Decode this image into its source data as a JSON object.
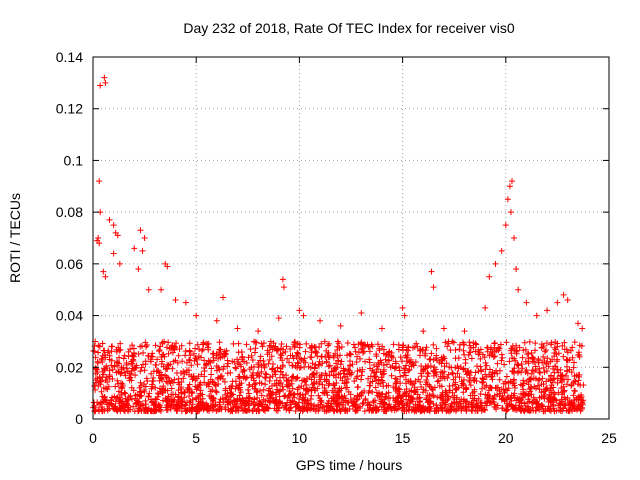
{
  "chart_data": {
    "type": "scatter",
    "title": "Day 232 of 2018, Rate Of TEC Index for receiver vis0",
    "xlabel": "GPS time / hours",
    "ylabel": "ROTI / TECUs",
    "xlim": [
      0,
      25
    ],
    "ylim": [
      0,
      0.14
    ],
    "xticks": [
      0,
      5,
      10,
      15,
      20,
      25
    ],
    "xtick_labels": [
      "0",
      "5",
      "10",
      "15",
      "20",
      "25"
    ],
    "yticks": [
      0,
      0.02,
      0.04,
      0.06,
      0.08,
      0.1,
      0.12,
      0.14
    ],
    "ytick_labels": [
      "0",
      "0.02",
      "0.04",
      "0.06",
      "0.08",
      "0.1",
      "0.12",
      "0.14"
    ],
    "grid": true,
    "marker": "+",
    "series": [
      {
        "name": "vis0",
        "color": "#ff0000",
        "data_range_hours": [
          0,
          23.8
        ],
        "baseline_range": [
          0.003,
          0.03
        ],
        "points": [
          [
            0.35,
            0.129
          ],
          [
            0.55,
            0.132
          ],
          [
            0.6,
            0.13
          ],
          [
            0.3,
            0.092
          ],
          [
            0.35,
            0.08
          ],
          [
            0.2,
            0.069
          ],
          [
            0.25,
            0.07
          ],
          [
            0.3,
            0.068
          ],
          [
            0.8,
            0.077
          ],
          [
            1.0,
            0.075
          ],
          [
            1.1,
            0.072
          ],
          [
            1.2,
            0.071
          ],
          [
            1.0,
            0.064
          ],
          [
            1.3,
            0.06
          ],
          [
            0.5,
            0.057
          ],
          [
            0.6,
            0.055
          ],
          [
            2.0,
            0.066
          ],
          [
            2.3,
            0.073
          ],
          [
            2.5,
            0.07
          ],
          [
            2.4,
            0.065
          ],
          [
            2.2,
            0.058
          ],
          [
            2.7,
            0.05
          ],
          [
            3.5,
            0.06
          ],
          [
            3.6,
            0.059
          ],
          [
            3.3,
            0.05
          ],
          [
            4.0,
            0.046
          ],
          [
            4.5,
            0.045
          ],
          [
            5.0,
            0.04
          ],
          [
            6.0,
            0.038
          ],
          [
            6.3,
            0.047
          ],
          [
            7.0,
            0.035
          ],
          [
            8.0,
            0.034
          ],
          [
            9.0,
            0.039
          ],
          [
            9.2,
            0.054
          ],
          [
            9.25,
            0.051
          ],
          [
            10.0,
            0.042
          ],
          [
            10.2,
            0.04
          ],
          [
            11.0,
            0.038
          ],
          [
            12.0,
            0.036
          ],
          [
            13.0,
            0.041
          ],
          [
            14.0,
            0.035
          ],
          [
            15.0,
            0.043
          ],
          [
            15.1,
            0.04
          ],
          [
            16.0,
            0.034
          ],
          [
            16.4,
            0.057
          ],
          [
            16.5,
            0.051
          ],
          [
            17.0,
            0.035
          ],
          [
            18.0,
            0.034
          ],
          [
            19.0,
            0.043
          ],
          [
            19.2,
            0.055
          ],
          [
            19.5,
            0.06
          ],
          [
            19.8,
            0.065
          ],
          [
            20.0,
            0.075
          ],
          [
            20.1,
            0.085
          ],
          [
            20.2,
            0.09
          ],
          [
            20.3,
            0.092
          ],
          [
            20.25,
            0.08
          ],
          [
            20.4,
            0.07
          ],
          [
            20.5,
            0.058
          ],
          [
            20.6,
            0.05
          ],
          [
            21.0,
            0.045
          ],
          [
            21.5,
            0.04
          ],
          [
            22.0,
            0.042
          ],
          [
            22.5,
            0.045
          ],
          [
            22.8,
            0.048
          ],
          [
            23.0,
            0.046
          ],
          [
            23.5,
            0.037
          ],
          [
            23.7,
            0.035
          ]
        ]
      }
    ]
  }
}
